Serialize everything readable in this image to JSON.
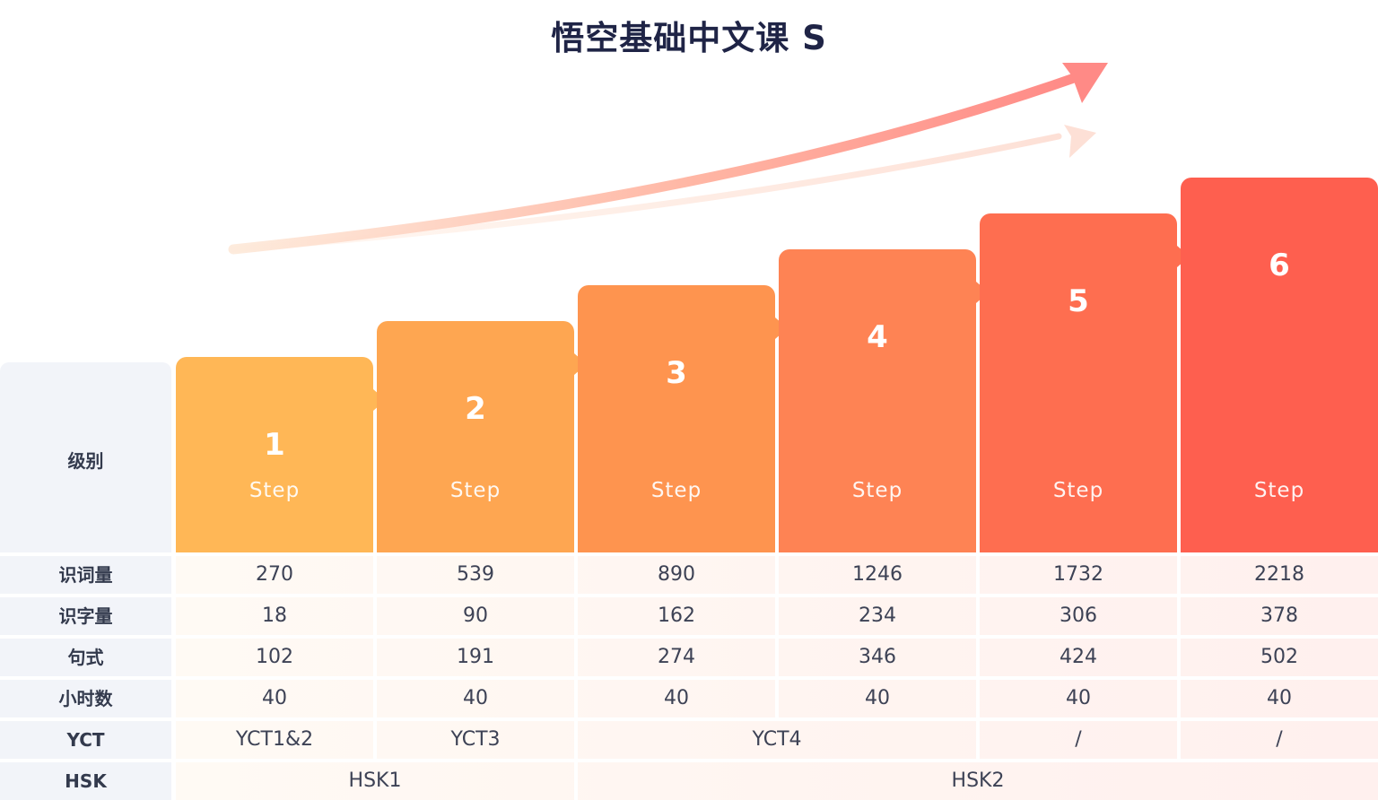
{
  "title": "悟空基础中文课 S",
  "level_label": "级别",
  "steps": [
    {
      "number": "1",
      "word": "Step",
      "color": "#ffb756"
    },
    {
      "number": "2",
      "word": "Step",
      "color": "#fea651"
    },
    {
      "number": "3",
      "word": "Step",
      "color": "#fe944f"
    },
    {
      "number": "4",
      "word": "Step",
      "color": "#fe8354"
    },
    {
      "number": "5",
      "word": "Step",
      "color": "#fe6e50"
    },
    {
      "number": "6",
      "word": "Step",
      "color": "#fe5f4f"
    }
  ],
  "rows": [
    {
      "label": "识词量",
      "cells": [
        {
          "text": "270",
          "span": 1
        },
        {
          "text": "539",
          "span": 1
        },
        {
          "text": "890",
          "span": 1
        },
        {
          "text": "1246",
          "span": 1
        },
        {
          "text": "1732",
          "span": 1
        },
        {
          "text": "2218",
          "span": 1
        }
      ]
    },
    {
      "label": "识字量",
      "cells": [
        {
          "text": "18",
          "span": 1
        },
        {
          "text": "90",
          "span": 1
        },
        {
          "text": "162",
          "span": 1
        },
        {
          "text": "234",
          "span": 1
        },
        {
          "text": "306",
          "span": 1
        },
        {
          "text": "378",
          "span": 1
        }
      ]
    },
    {
      "label": "句式",
      "cells": [
        {
          "text": "102",
          "span": 1
        },
        {
          "text": "191",
          "span": 1
        },
        {
          "text": "274",
          "span": 1
        },
        {
          "text": "346",
          "span": 1
        },
        {
          "text": "424",
          "span": 1
        },
        {
          "text": "502",
          "span": 1
        }
      ]
    },
    {
      "label": "小时数",
      "cells": [
        {
          "text": "40",
          "span": 1
        },
        {
          "text": "40",
          "span": 1
        },
        {
          "text": "40",
          "span": 1
        },
        {
          "text": "40",
          "span": 1
        },
        {
          "text": "40",
          "span": 1
        },
        {
          "text": "40",
          "span": 1
        }
      ]
    },
    {
      "label": "YCT",
      "cells": [
        {
          "text": "YCT1&2",
          "span": 1
        },
        {
          "text": "YCT3",
          "span": 1
        },
        {
          "text": "YCT4",
          "span": 2
        },
        {
          "text": "/",
          "span": 1
        },
        {
          "text": "/",
          "span": 1
        }
      ]
    },
    {
      "label": "HSK",
      "cells": [
        {
          "text": "HSK1",
          "span": 2
        },
        {
          "text": "HSK2",
          "span": 4
        }
      ]
    }
  ],
  "colors": {
    "cell_bg_start": "#fffaf4",
    "cell_bg_end": "#fff0ee",
    "label_bg": "#f2f4f9",
    "arrow_main": "#ff8a86",
    "arrow_light": "#fde0d6"
  }
}
